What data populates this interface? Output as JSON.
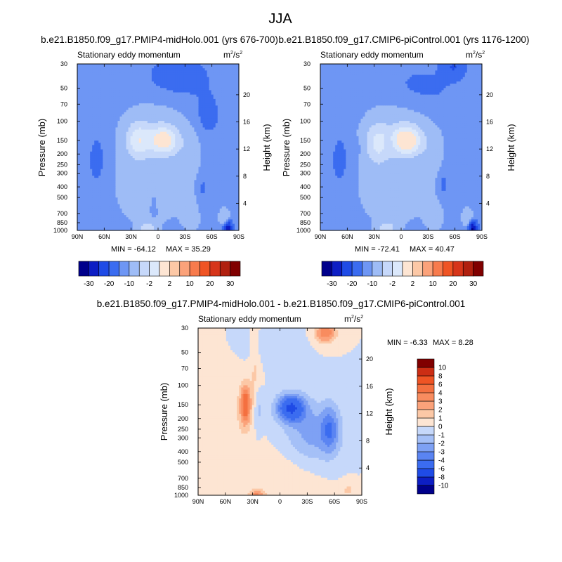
{
  "figure_title": "JJA",
  "chart_data": [
    {
      "type": "contour",
      "panel": "top-left",
      "title": "b.e21.B1850.f09_g17.PMIP4-midHolo.001 (yrs 676-700)",
      "left_label": "Stationary eddy momentum",
      "units_base": "m",
      "units_exp": "2",
      "units_den": "/s",
      "units_den_exp": "2",
      "ylabel": "Pressure (mb)",
      "y2label": "Height (km)",
      "min_label": "MIN = -64.12",
      "max_label": "MAX = 35.29",
      "min": -64.12,
      "max": 35.29,
      "xlim": [
        -90,
        90
      ],
      "ylim": [
        1000,
        30
      ],
      "x_ticks": [
        {
          "v": -90,
          "l": "90N"
        },
        {
          "v": -60,
          "l": "60N"
        },
        {
          "v": -30,
          "l": "30N"
        },
        {
          "v": 0,
          "l": "0"
        },
        {
          "v": 30,
          "l": "30S"
        },
        {
          "v": 60,
          "l": "60S"
        },
        {
          "v": 90,
          "l": "90S"
        }
      ],
      "p_ticks": [
        {
          "v": 30,
          "l": "30"
        },
        {
          "v": 50,
          "l": "50"
        },
        {
          "v": 70,
          "l": "70"
        },
        {
          "v": 100,
          "l": "100"
        },
        {
          "v": 150,
          "l": "150"
        },
        {
          "v": 200,
          "l": "200"
        },
        {
          "v": 250,
          "l": "250"
        },
        {
          "v": 300,
          "l": "300"
        },
        {
          "v": 400,
          "l": "400"
        },
        {
          "v": 500,
          "l": "500"
        },
        {
          "v": 700,
          "l": "700"
        },
        {
          "v": 850,
          "l": "850"
        },
        {
          "v": 1000,
          "l": "1000"
        }
      ],
      "h_ticks": [
        {
          "v": 4,
          "l": "4"
        },
        {
          "v": 8,
          "l": "8"
        },
        {
          "v": 12,
          "l": "12"
        },
        {
          "v": 16,
          "l": "16"
        },
        {
          "v": 20,
          "l": "20"
        }
      ],
      "levels": [
        -30,
        -20,
        -10,
        -2,
        2,
        10,
        20,
        30
      ],
      "level_labels": [
        "-30",
        "-20",
        "-10",
        "-2",
        "2",
        "10",
        "20",
        "30"
      ],
      "features": [
        {
          "lat": -22,
          "p": 150,
          "dx": 9,
          "dy": 0.25,
          "amp": 24
        },
        {
          "lat": 6,
          "p": 150,
          "dx": 11,
          "dy": 0.2,
          "amp": 34
        },
        {
          "lat": -3,
          "p": 120,
          "dx": 26,
          "dy": 0.45,
          "amp": 5
        },
        {
          "lat": -10,
          "p": 400,
          "dx": 32,
          "dy": 0.7,
          "amp": 4
        },
        {
          "lat": 35,
          "p": 220,
          "dx": 8,
          "dy": 0.35,
          "amp": 6
        },
        {
          "lat": 38,
          "p": 650,
          "dx": 8,
          "dy": 0.35,
          "amp": 4
        },
        {
          "lat": 55,
          "p": 90,
          "dx": 10,
          "dy": 0.3,
          "amp": -4
        },
        {
          "lat": 22,
          "p": 40,
          "dx": 28,
          "dy": 0.35,
          "amp": -4
        },
        {
          "lat": -68,
          "p": 230,
          "dx": 6,
          "dy": 0.35,
          "amp": -5
        },
        {
          "lat": -5,
          "p": 560,
          "dx": 4,
          "dy": 0.25,
          "amp": -2
        },
        {
          "lat": 48,
          "p": 420,
          "dx": 6,
          "dy": 0.3,
          "amp": -4
        },
        {
          "lat": -12,
          "p": 960,
          "dx": 6,
          "dy": 0.1,
          "amp": 16
        },
        {
          "lat": 78,
          "p": 960,
          "dx": 3,
          "dy": 0.1,
          "amp": -30
        },
        {
          "lat": 74,
          "p": 760,
          "dx": 4,
          "dy": 0.12,
          "amp": 10
        }
      ]
    },
    {
      "type": "contour",
      "panel": "top-right",
      "title": "b.e21.B1850.f09_g17.CMIP6-piControl.001 (yrs 1176-1200)",
      "left_label": "Stationary eddy momentum",
      "units_base": "m",
      "units_exp": "2",
      "units_den": "/s",
      "units_den_exp": "2",
      "ylabel": "Pressure (mb)",
      "y2label": "Height (km)",
      "min_label": "MIN = -72.41",
      "max_label": "MAX = 40.47",
      "min": -72.41,
      "max": 40.47,
      "xlim": [
        -90,
        90
      ],
      "ylim": [
        1000,
        30
      ],
      "x_ticks": [
        {
          "v": -90,
          "l": "90N"
        },
        {
          "v": -60,
          "l": "60N"
        },
        {
          "v": -30,
          "l": "30N"
        },
        {
          "v": 0,
          "l": "0"
        },
        {
          "v": 30,
          "l": "30S"
        },
        {
          "v": 60,
          "l": "60S"
        },
        {
          "v": 90,
          "l": "90S"
        }
      ],
      "p_ticks": [
        {
          "v": 30,
          "l": "30"
        },
        {
          "v": 50,
          "l": "50"
        },
        {
          "v": 70,
          "l": "70"
        },
        {
          "v": 100,
          "l": "100"
        },
        {
          "v": 150,
          "l": "150"
        },
        {
          "v": 200,
          "l": "200"
        },
        {
          "v": 250,
          "l": "250"
        },
        {
          "v": 300,
          "l": "300"
        },
        {
          "v": 400,
          "l": "400"
        },
        {
          "v": 500,
          "l": "500"
        },
        {
          "v": 700,
          "l": "700"
        },
        {
          "v": 850,
          "l": "850"
        },
        {
          "v": 1000,
          "l": "1000"
        }
      ],
      "h_ticks": [
        {
          "v": 4,
          "l": "4"
        },
        {
          "v": 8,
          "l": "8"
        },
        {
          "v": 12,
          "l": "12"
        },
        {
          "v": 16,
          "l": "16"
        },
        {
          "v": 20,
          "l": "20"
        }
      ],
      "levels": [
        -30,
        -20,
        -10,
        -2,
        2,
        10,
        20,
        30
      ],
      "level_labels": [
        "-30",
        "-20",
        "-10",
        "-2",
        "2",
        "10",
        "20",
        "30"
      ],
      "features": [
        {
          "lat": -26,
          "p": 160,
          "dx": 9,
          "dy": 0.28,
          "amp": 20
        },
        {
          "lat": 6,
          "p": 150,
          "dx": 11,
          "dy": 0.2,
          "amp": 40
        },
        {
          "lat": -3,
          "p": 120,
          "dx": 26,
          "dy": 0.45,
          "amp": 5
        },
        {
          "lat": -10,
          "p": 400,
          "dx": 32,
          "dy": 0.7,
          "amp": 4
        },
        {
          "lat": -14,
          "p": 160,
          "dx": 3,
          "dy": 0.12,
          "amp": -6
        },
        {
          "lat": 35,
          "p": 220,
          "dx": 8,
          "dy": 0.35,
          "amp": 6
        },
        {
          "lat": 38,
          "p": 650,
          "dx": 8,
          "dy": 0.35,
          "amp": 4
        },
        {
          "lat": 58,
          "p": 32,
          "dx": 8,
          "dy": 0.15,
          "amp": -10
        },
        {
          "lat": 22,
          "p": 50,
          "dx": 30,
          "dy": 0.35,
          "amp": -3
        },
        {
          "lat": -68,
          "p": 230,
          "dx": 6,
          "dy": 0.35,
          "amp": -5
        },
        {
          "lat": -50,
          "p": 180,
          "dx": 3,
          "dy": 0.12,
          "amp": -4
        },
        {
          "lat": 45,
          "p": 380,
          "dx": 6,
          "dy": 0.3,
          "amp": -5
        },
        {
          "lat": -16,
          "p": 960,
          "dx": 7,
          "dy": 0.1,
          "amp": 14
        },
        {
          "lat": 80,
          "p": 960,
          "dx": 3,
          "dy": 0.1,
          "amp": -32
        },
        {
          "lat": 74,
          "p": 760,
          "dx": 4,
          "dy": 0.12,
          "amp": 10
        }
      ]
    },
    {
      "type": "contour",
      "panel": "bottom-difference",
      "title": "b.e21.B1850.f09_g17.PMIP4-midHolo.001 - b.e21.B1850.f09_g17.CMIP6-piControl.001",
      "left_label": "Stationary eddy momentum",
      "units_base": "m",
      "units_exp": "2",
      "units_den": "/s",
      "units_den_exp": "2",
      "ylabel": "Pressure (mb)",
      "y2label": "Height (km)",
      "min_label": "MIN =  -6.33",
      "max_label": "MAX =   8.28",
      "min": -6.33,
      "max": 8.28,
      "xlim": [
        -90,
        90
      ],
      "ylim": [
        1000,
        30
      ],
      "x_ticks": [
        {
          "v": -90,
          "l": "90N"
        },
        {
          "v": -60,
          "l": "60N"
        },
        {
          "v": -30,
          "l": "30N"
        },
        {
          "v": 0,
          "l": "0"
        },
        {
          "v": 30,
          "l": "30S"
        },
        {
          "v": 60,
          "l": "60S"
        },
        {
          "v": 90,
          "l": "90S"
        }
      ],
      "p_ticks": [
        {
          "v": 30,
          "l": "30"
        },
        {
          "v": 50,
          "l": "50"
        },
        {
          "v": 70,
          "l": "70"
        },
        {
          "v": 100,
          "l": "100"
        },
        {
          "v": 150,
          "l": "150"
        },
        {
          "v": 200,
          "l": "200"
        },
        {
          "v": 250,
          "l": "250"
        },
        {
          "v": 300,
          "l": "300"
        },
        {
          "v": 400,
          "l": "400"
        },
        {
          "v": 500,
          "l": "500"
        },
        {
          "v": 700,
          "l": "700"
        },
        {
          "v": 850,
          "l": "850"
        },
        {
          "v": 1000,
          "l": "1000"
        }
      ],
      "h_ticks": [
        {
          "v": 4,
          "l": "4"
        },
        {
          "v": 8,
          "l": "8"
        },
        {
          "v": 12,
          "l": "12"
        },
        {
          "v": 16,
          "l": "16"
        },
        {
          "v": 20,
          "l": "20"
        }
      ],
      "levels": [
        -10,
        -8,
        -6,
        -4,
        -3,
        -2,
        -1,
        0,
        1,
        2,
        3,
        4,
        6,
        8,
        10
      ],
      "level_labels": [
        "-10",
        "-8",
        "-6",
        "-4",
        "-3",
        "-2",
        "-1",
        "0",
        "1",
        "2",
        "3",
        "4",
        "6",
        "8",
        "10"
      ],
      "features": [
        {
          "lat": -38,
          "p": 150,
          "dx": 4,
          "dy": 0.3,
          "amp": 5
        },
        {
          "lat": -24,
          "p": 160,
          "dx": 3,
          "dy": 0.35,
          "amp": -1.6
        },
        {
          "lat": -27,
          "p": 80,
          "dx": 4,
          "dy": 0.6,
          "amp": 1.2
        },
        {
          "lat": 12,
          "p": 160,
          "dx": 11,
          "dy": 0.2,
          "amp": -6
        },
        {
          "lat": 35,
          "p": 280,
          "dx": 22,
          "dy": 0.45,
          "amp": -2.5
        },
        {
          "lat": 55,
          "p": 250,
          "dx": 7,
          "dy": 0.35,
          "amp": -2.8
        },
        {
          "lat": 50,
          "p": 33,
          "dx": 8,
          "dy": 0.15,
          "amp": 4
        },
        {
          "lat": -55,
          "p": 200,
          "dx": 15,
          "dy": 0.6,
          "amp": 0.8
        },
        {
          "lat": 10,
          "p": 600,
          "dx": 30,
          "dy": 0.5,
          "amp": 0.7
        },
        {
          "lat": -5,
          "p": 45,
          "dx": 20,
          "dy": 0.25,
          "amp": -0.8
        },
        {
          "lat": -25,
          "p": 980,
          "dx": 6,
          "dy": 0.07,
          "amp": 3
        },
        {
          "lat": 75,
          "p": 900,
          "dx": 5,
          "dy": 0.12,
          "amp": 1.2
        }
      ]
    }
  ],
  "colors": {
    "top_palette": [
      "#00008b",
      "#0d1ec4",
      "#1f4be6",
      "#3b6cf0",
      "#6e96f4",
      "#9ebcf6",
      "#c6d8fa",
      "#dbe8fb",
      "#fde5d3",
      "#fcc8a6",
      "#fba27a",
      "#f77b4d",
      "#ef5424",
      "#d6351a",
      "#b0200f",
      "#800000"
    ],
    "diff_palette": [
      "#00008b",
      "#0d1ec4",
      "#1f4be6",
      "#3b6cf0",
      "#5a84f2",
      "#7ea1f4",
      "#a5c0f7",
      "#c6d8fa",
      "#fde5d3",
      "#fcc8a6",
      "#fba27a",
      "#f88c5f",
      "#f47040",
      "#ef5424",
      "#cc2e14",
      "#800000"
    ]
  }
}
